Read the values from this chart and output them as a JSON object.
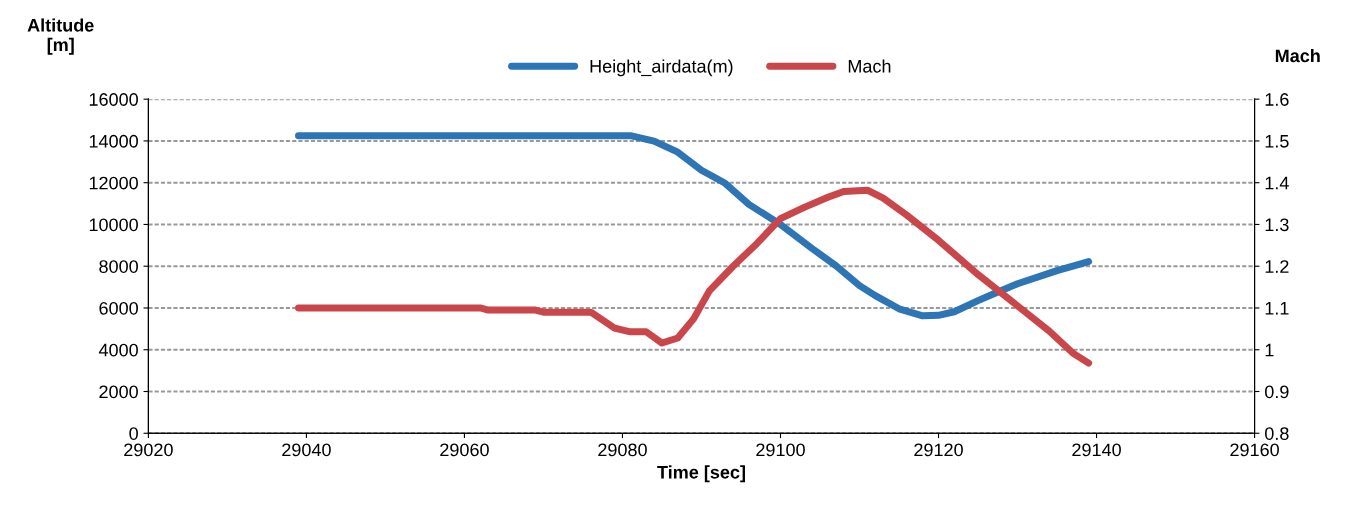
{
  "chart_data": {
    "type": "line",
    "xlabel": "Time [sec]",
    "ylabel": "Altitude\n[m]",
    "y2label": "Mach",
    "xlim": [
      29020,
      29160
    ],
    "xticks": [
      29020,
      29040,
      29060,
      29080,
      29100,
      29120,
      29140,
      29160
    ],
    "ylim": [
      0,
      16000
    ],
    "yticks": [
      0,
      2000,
      4000,
      6000,
      8000,
      10000,
      12000,
      14000,
      16000
    ],
    "y2lim": [
      0.8,
      1.6
    ],
    "y2ticks": [
      {
        "value": 0.8,
        "label": "0.8"
      },
      {
        "value": 0.9,
        "label": "0.9"
      },
      {
        "value": 1.0,
        "label": "1"
      },
      {
        "value": 1.1,
        "label": "1.1"
      },
      {
        "value": 1.2,
        "label": "1.2"
      },
      {
        "value": 1.3,
        "label": "1.3"
      },
      {
        "value": 1.4,
        "label": "1.4"
      },
      {
        "value": 1.5,
        "label": "1.5"
      },
      {
        "value": 1.6,
        "label": "1.6"
      }
    ],
    "grid": "y",
    "legend": "top",
    "line_style": "solid",
    "marker": "none",
    "series": [
      {
        "name": "Height_airdata(m)",
        "color": "#2e75b6",
        "x": [
          29039,
          29060,
          29081,
          29084,
          29087,
          29090,
          29093,
          29096,
          29100,
          29104,
          29107,
          29110,
          29112,
          29115,
          29118,
          29120,
          29122,
          29125,
          29127,
          29130,
          29135,
          29139
        ],
        "values": [
          14250,
          14250,
          14250,
          13990,
          13460,
          12600,
          11970,
          10960,
          10000,
          8850,
          8030,
          7070,
          6590,
          5960,
          5625,
          5650,
          5820,
          6350,
          6680,
          7160,
          7790,
          8220
        ]
      },
      {
        "name": "Mach",
        "color": "#c9474b",
        "axis": "y2",
        "x": [
          29039,
          29062,
          29063,
          29069,
          29070,
          29076,
          29079,
          29081,
          29083,
          29085,
          29087,
          29089,
          29091,
          29094,
          29097,
          29100,
          29103,
          29106,
          29108,
          29111,
          29113,
          29116,
          29120,
          29125,
          29130,
          29134,
          29137,
          29139
        ],
        "values": [
          1.1,
          1.1,
          1.095,
          1.095,
          1.09,
          1.09,
          1.052,
          1.043,
          1.043,
          1.016,
          1.028,
          1.074,
          1.141,
          1.2,
          1.254,
          1.314,
          1.341,
          1.365,
          1.379,
          1.382,
          1.363,
          1.322,
          1.262,
          1.18,
          1.105,
          1.045,
          0.992,
          0.968
        ]
      }
    ]
  }
}
